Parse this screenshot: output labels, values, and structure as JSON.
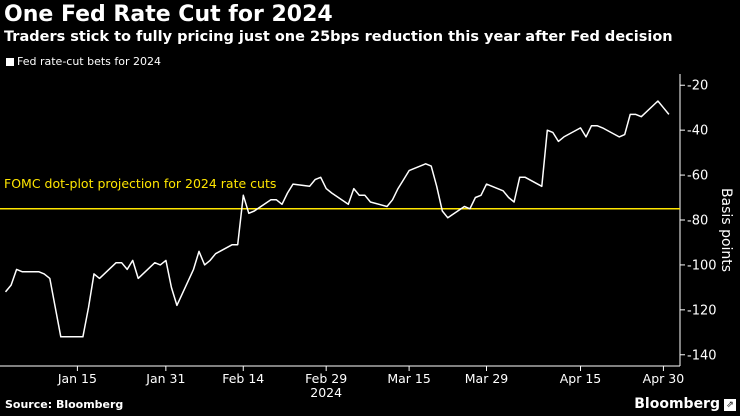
{
  "header": {
    "title": "One Fed Rate Cut for 2024",
    "subtitle": "Traders stick to fully pricing just one 25bps reduction this year after Fed decision"
  },
  "footer": {
    "source": "Source: Bloomberg",
    "brand": "Bloomberg"
  },
  "icons": {
    "brand_mark": "bloomberg-chart-icon"
  },
  "colors": {
    "background": "#000000",
    "series": "#ffffff",
    "reference_line": "#ffe600"
  },
  "chart_data": {
    "type": "line",
    "legend": {
      "position": "top-left",
      "entries": [
        "Fed rate-cut bets for 2024"
      ]
    },
    "ylabel": "Basis points",
    "y_axis_side": "right",
    "y_inverted": true,
    "ylim": [
      -15,
      -145
    ],
    "yticks": [
      -20,
      -40,
      -60,
      -80,
      -100,
      -120,
      -140
    ],
    "ytick_labels": [
      "-20",
      "-40",
      "-60",
      "-80",
      "-100",
      "-120",
      "-140"
    ],
    "xlim": [
      "2024-01-01",
      "2024-05-03"
    ],
    "xticks": [
      {
        "date": "2024-01-15",
        "label": "Jan 15"
      },
      {
        "date": "2024-01-31",
        "label": "Jan 31"
      },
      {
        "date": "2024-02-14",
        "label": "Feb 14"
      },
      {
        "date": "2024-02-29",
        "label": "Feb 29"
      },
      {
        "date": "2024-03-15",
        "label": "Mar 15"
      },
      {
        "date": "2024-03-29",
        "label": "Mar 29"
      },
      {
        "date": "2024-04-15",
        "label": "Apr 15"
      },
      {
        "date": "2024-04-30",
        "label": "Apr 30"
      }
    ],
    "x_year_label": "2024",
    "grid": false,
    "reference_lines": [
      {
        "y": -75,
        "label": "FOMC dot-plot projection for 2024 rate cuts",
        "color": "#ffe600"
      }
    ],
    "series": [
      {
        "name": "Fed rate-cut bets for 2024",
        "color": "#ffffff",
        "points": [
          [
            "2024-01-02",
            -112
          ],
          [
            "2024-01-03",
            -109
          ],
          [
            "2024-01-04",
            -102
          ],
          [
            "2024-01-05",
            -103
          ],
          [
            "2024-01-08",
            -103
          ],
          [
            "2024-01-09",
            -104
          ],
          [
            "2024-01-10",
            -106
          ],
          [
            "2024-01-11",
            -119
          ],
          [
            "2024-01-12",
            -132
          ],
          [
            "2024-01-16",
            -132
          ],
          [
            "2024-01-17",
            -119
          ],
          [
            "2024-01-18",
            -104
          ],
          [
            "2024-01-19",
            -106
          ],
          [
            "2024-01-22",
            -99
          ],
          [
            "2024-01-23",
            -99
          ],
          [
            "2024-01-24",
            -102
          ],
          [
            "2024-01-25",
            -98
          ],
          [
            "2024-01-26",
            -106
          ],
          [
            "2024-01-29",
            -99
          ],
          [
            "2024-01-30",
            -100
          ],
          [
            "2024-01-31",
            -98
          ],
          [
            "2024-02-01",
            -110
          ],
          [
            "2024-02-02",
            -118
          ],
          [
            "2024-02-05",
            -102
          ],
          [
            "2024-02-06",
            -94
          ],
          [
            "2024-02-07",
            -100
          ],
          [
            "2024-02-08",
            -98
          ],
          [
            "2024-02-09",
            -95
          ],
          [
            "2024-02-12",
            -91
          ],
          [
            "2024-02-13",
            -91
          ],
          [
            "2024-02-14",
            -69
          ],
          [
            "2024-02-15",
            -77
          ],
          [
            "2024-02-16",
            -76
          ],
          [
            "2024-02-19",
            -71
          ],
          [
            "2024-02-20",
            -71
          ],
          [
            "2024-02-21",
            -73
          ],
          [
            "2024-02-22",
            -68
          ],
          [
            "2024-02-23",
            -64
          ],
          [
            "2024-02-26",
            -65
          ],
          [
            "2024-02-27",
            -62
          ],
          [
            "2024-02-28",
            -61
          ],
          [
            "2024-02-29",
            -66
          ],
          [
            "2024-03-01",
            -68
          ],
          [
            "2024-03-04",
            -73
          ],
          [
            "2024-03-05",
            -66
          ],
          [
            "2024-03-06",
            -69
          ],
          [
            "2024-03-07",
            -69
          ],
          [
            "2024-03-08",
            -72
          ],
          [
            "2024-03-11",
            -74
          ],
          [
            "2024-03-12",
            -71
          ],
          [
            "2024-03-13",
            -66
          ],
          [
            "2024-03-14",
            -62
          ],
          [
            "2024-03-15",
            -58
          ],
          [
            "2024-03-18",
            -55
          ],
          [
            "2024-03-19",
            -56
          ],
          [
            "2024-03-20",
            -65
          ],
          [
            "2024-03-21",
            -76
          ],
          [
            "2024-03-22",
            -79
          ],
          [
            "2024-03-25",
            -74
          ],
          [
            "2024-03-26",
            -75
          ],
          [
            "2024-03-27",
            -70
          ],
          [
            "2024-03-28",
            -69
          ],
          [
            "2024-03-29",
            -64
          ],
          [
            "2024-04-01",
            -67
          ],
          [
            "2024-04-02",
            -70
          ],
          [
            "2024-04-03",
            -72
          ],
          [
            "2024-04-04",
            -61
          ],
          [
            "2024-04-05",
            -61
          ],
          [
            "2024-04-08",
            -65
          ],
          [
            "2024-04-09",
            -40
          ],
          [
            "2024-04-10",
            -41
          ],
          [
            "2024-04-11",
            -45
          ],
          [
            "2024-04-12",
            -43
          ],
          [
            "2024-04-15",
            -39
          ],
          [
            "2024-04-16",
            -43
          ],
          [
            "2024-04-17",
            -38
          ],
          [
            "2024-04-18",
            -38
          ],
          [
            "2024-04-19",
            -39
          ],
          [
            "2024-04-22",
            -43
          ],
          [
            "2024-04-23",
            -42
          ],
          [
            "2024-04-24",
            -33
          ],
          [
            "2024-04-25",
            -33
          ],
          [
            "2024-04-26",
            -34
          ],
          [
            "2024-04-29",
            -27
          ],
          [
            "2024-04-30",
            -30
          ],
          [
            "2024-05-01",
            -33
          ]
        ]
      }
    ]
  }
}
